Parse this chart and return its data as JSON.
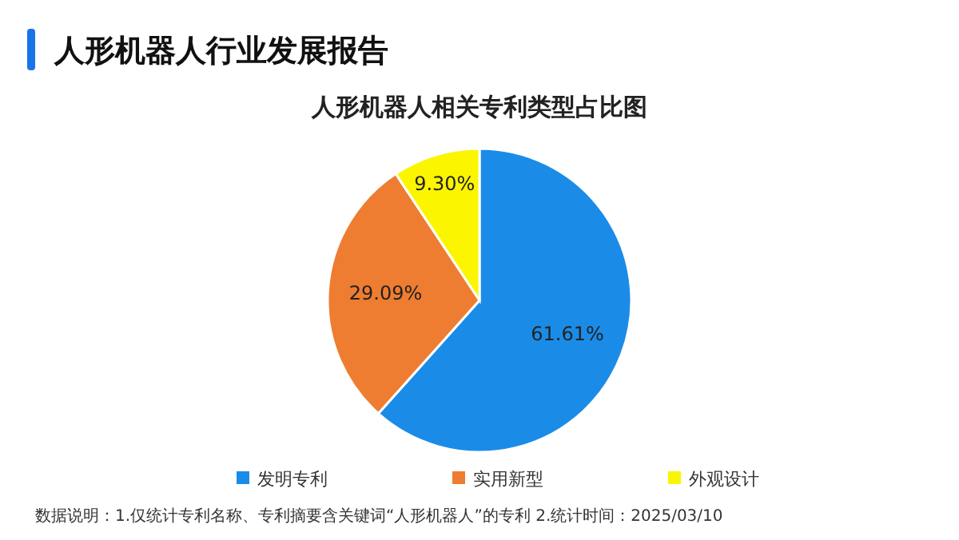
{
  "chart_data": {
    "type": "pie",
    "title": "人形机器人行业发展报告",
    "subtitle": "人形机器人相关专利类型占比图",
    "categories": [
      "发明专利",
      "实用新型",
      "外观设计"
    ],
    "values": [
      61.61,
      29.09,
      9.3
    ],
    "colors": [
      "#1a8ce8",
      "#ee7d31",
      "#fcf500"
    ],
    "value_labels": [
      "61.61%",
      "29.09%",
      "9.30%"
    ],
    "legend": "bottom",
    "annotations": [
      "数据说明：1.仅统计专利名称、专利摘要含关键词“人形机器人”的专利 2.统计时间：2025/03/10"
    ]
  }
}
